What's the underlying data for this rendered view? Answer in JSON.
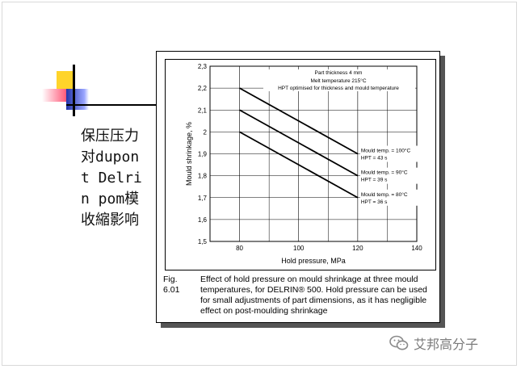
{
  "slide": {
    "title": "保压压力对dupont Delrin pom模收縮影响"
  },
  "figure": {
    "caption_number": "Fig. 6.01",
    "caption_text": "Effect of hold pressure on mould shrinkage at three mould temperatures, for DELRIN® 500. Hold pressure can be used for small adjustments of part dimensions, as it has negligible effect on post-moulding shrinkage"
  },
  "chart_data": {
    "type": "line",
    "xlabel": "Hold pressure, MPa",
    "ylabel": "Mould shrinkage, %",
    "xlim": [
      70,
      140
    ],
    "ylim": [
      1.5,
      2.3
    ],
    "x_ticks": [
      "80",
      "100",
      "120",
      "140"
    ],
    "y_ticks": [
      "1,5",
      "1,6",
      "1,7",
      "1,8",
      "1,9",
      "2",
      "2,1",
      "2,2",
      "2,3"
    ],
    "grid": true,
    "annotations": [
      "Part thickness 4 mm",
      "Melt temperature 215°C",
      "HPT optimised for thickness and mould temperature"
    ],
    "series": [
      {
        "name": "Mould temp. = 100°C  HPT = 43 s",
        "x": [
          80,
          120
        ],
        "y": [
          2.2,
          1.9
        ],
        "label_line1": "Mould temp. = 100°C",
        "label_line2": "HPT           = 43 s"
      },
      {
        "name": "Mould temp. = 90°C  HPT = 39 s",
        "x": [
          80,
          120
        ],
        "y": [
          2.1,
          1.8
        ],
        "label_line1": "Mould temp. = 90°C",
        "label_line2": "HPT           = 39 s"
      },
      {
        "name": "Mould temp. = 80°C  HPT = 36 s",
        "x": [
          80,
          120
        ],
        "y": [
          2.0,
          1.7
        ],
        "label_line1": "Mould temp. = 80°C",
        "label_line2": "HPT           = 36 s"
      }
    ]
  },
  "watermark": {
    "text": "艾邦高分子",
    "icon": "wechat-icon"
  }
}
